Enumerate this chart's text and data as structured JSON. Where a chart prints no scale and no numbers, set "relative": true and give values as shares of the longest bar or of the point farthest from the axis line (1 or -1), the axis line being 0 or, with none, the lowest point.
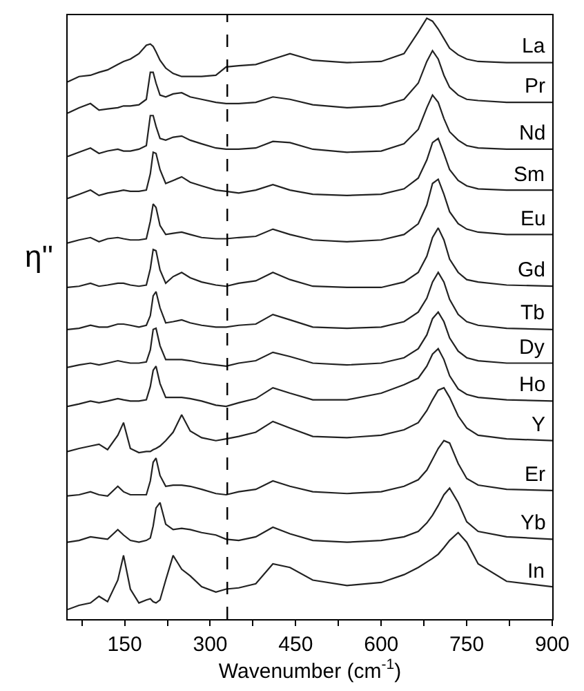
{
  "chart_data": {
    "type": "line",
    "xlabel": "Wavenumber (cm$^{-1}$)",
    "ylabel": "η''",
    "relative": true,
    "xlim": [
      50,
      900
    ],
    "xticks": [
      {
        "value": 75,
        "label": null
      },
      150,
      {
        "value": 225,
        "label": null
      },
      300,
      {
        "value": 375,
        "label": null
      },
      450,
      {
        "value": 525,
        "label": null
      },
      600,
      {
        "value": 675,
        "label": null
      },
      750,
      {
        "value": 825,
        "label": null
      },
      900
    ],
    "ref_lines": [
      {
        "axis": "x",
        "value": 330,
        "color": "#000000",
        "line_style": "dashed"
      }
    ],
    "x": [
      50,
      70,
      90,
      105,
      120,
      138,
      148,
      160,
      175,
      188,
      195,
      200,
      205,
      212,
      222,
      235,
      250,
      265,
      285,
      310,
      328,
      350,
      380,
      410,
      440,
      480,
      540,
      600,
      640,
      665,
      680,
      690,
      700,
      710,
      720,
      735,
      750,
      770,
      820,
      900
    ],
    "series": [
      {
        "name": "La",
        "color": "#222222",
        "values": [
          0.894,
          0.903,
          0.905,
          0.91,
          0.914,
          0.923,
          0.928,
          0.932,
          0.941,
          0.955,
          0.957,
          0.953,
          0.944,
          0.93,
          0.917,
          0.908,
          0.903,
          0.903,
          0.903,
          0.905,
          0.919,
          0.921,
          0.923,
          0.932,
          0.941,
          0.93,
          0.926,
          0.928,
          0.941,
          0.977,
          1.0,
          0.995,
          0.982,
          0.966,
          0.95,
          0.939,
          0.932,
          0.928,
          0.926,
          0.926
        ]
      },
      {
        "name": "Pr",
        "color": "#222222",
        "values": [
          0.842,
          0.851,
          0.858,
          0.847,
          0.849,
          0.851,
          0.854,
          0.854,
          0.856,
          0.865,
          0.91,
          0.91,
          0.892,
          0.872,
          0.869,
          0.874,
          0.876,
          0.869,
          0.865,
          0.86,
          0.858,
          0.858,
          0.86,
          0.869,
          0.865,
          0.856,
          0.851,
          0.854,
          0.865,
          0.892,
          0.928,
          0.946,
          0.932,
          0.905,
          0.885,
          0.872,
          0.865,
          0.863,
          0.86,
          0.86
        ]
      },
      {
        "name": "Nd",
        "color": "#222222",
        "values": [
          0.77,
          0.777,
          0.784,
          0.775,
          0.779,
          0.782,
          0.779,
          0.779,
          0.782,
          0.788,
          0.838,
          0.838,
          0.82,
          0.8,
          0.797,
          0.802,
          0.804,
          0.797,
          0.791,
          0.784,
          0.782,
          0.782,
          0.784,
          0.795,
          0.793,
          0.782,
          0.777,
          0.779,
          0.791,
          0.815,
          0.851,
          0.872,
          0.86,
          0.833,
          0.811,
          0.797,
          0.788,
          0.784,
          0.782,
          0.782
        ]
      },
      {
        "name": "Sm",
        "color": "#222222",
        "values": [
          0.7,
          0.707,
          0.714,
          0.705,
          0.709,
          0.712,
          0.714,
          0.712,
          0.712,
          0.714,
          0.741,
          0.777,
          0.775,
          0.748,
          0.725,
          0.73,
          0.736,
          0.727,
          0.721,
          0.714,
          0.712,
          0.709,
          0.714,
          0.723,
          0.714,
          0.707,
          0.705,
          0.707,
          0.716,
          0.734,
          0.764,
          0.793,
          0.8,
          0.775,
          0.748,
          0.73,
          0.721,
          0.716,
          0.714,
          0.714
        ]
      },
      {
        "name": "Eu",
        "color": "#222222",
        "values": [
          0.626,
          0.631,
          0.635,
          0.628,
          0.633,
          0.635,
          0.633,
          0.631,
          0.631,
          0.633,
          0.662,
          0.691,
          0.685,
          0.655,
          0.64,
          0.642,
          0.644,
          0.64,
          0.635,
          0.633,
          0.633,
          0.635,
          0.637,
          0.649,
          0.64,
          0.631,
          0.628,
          0.631,
          0.64,
          0.658,
          0.689,
          0.725,
          0.732,
          0.707,
          0.678,
          0.658,
          0.649,
          0.644,
          0.64,
          0.64
        ]
      },
      {
        "name": "Gd",
        "color": "#222222",
        "values": [
          0.552,
          0.554,
          0.559,
          0.554,
          0.556,
          0.559,
          0.559,
          0.556,
          0.554,
          0.556,
          0.583,
          0.615,
          0.613,
          0.581,
          0.559,
          0.57,
          0.577,
          0.568,
          0.561,
          0.556,
          0.554,
          0.559,
          0.563,
          0.577,
          0.565,
          0.554,
          0.552,
          0.552,
          0.561,
          0.577,
          0.604,
          0.635,
          0.651,
          0.631,
          0.599,
          0.577,
          0.565,
          0.561,
          0.556,
          0.554
        ]
      },
      {
        "name": "Tb",
        "color": "#222222",
        "values": [
          0.482,
          0.484,
          0.489,
          0.486,
          0.486,
          0.491,
          0.491,
          0.489,
          0.486,
          0.489,
          0.505,
          0.538,
          0.545,
          0.518,
          0.493,
          0.495,
          0.498,
          0.493,
          0.489,
          0.486,
          0.486,
          0.489,
          0.491,
          0.507,
          0.498,
          0.486,
          0.484,
          0.486,
          0.495,
          0.511,
          0.534,
          0.561,
          0.577,
          0.561,
          0.532,
          0.507,
          0.495,
          0.489,
          0.484,
          0.482
        ]
      },
      {
        "name": "Dy",
        "color": "#222222",
        "values": [
          0.419,
          0.423,
          0.426,
          0.423,
          0.426,
          0.43,
          0.428,
          0.426,
          0.426,
          0.428,
          0.448,
          0.482,
          0.484,
          0.455,
          0.432,
          0.432,
          0.432,
          0.43,
          0.426,
          0.423,
          0.421,
          0.426,
          0.43,
          0.444,
          0.437,
          0.426,
          0.423,
          0.426,
          0.435,
          0.45,
          0.473,
          0.5,
          0.511,
          0.495,
          0.468,
          0.446,
          0.435,
          0.43,
          0.426,
          0.426
        ]
      },
      {
        "name": "Ho",
        "color": "#222222",
        "values": [
          0.354,
          0.358,
          0.363,
          0.36,
          0.363,
          0.367,
          0.365,
          0.363,
          0.363,
          0.365,
          0.387,
          0.414,
          0.421,
          0.392,
          0.369,
          0.369,
          0.369,
          0.367,
          0.363,
          0.356,
          0.354,
          0.36,
          0.367,
          0.385,
          0.376,
          0.365,
          0.365,
          0.376,
          0.39,
          0.401,
          0.421,
          0.441,
          0.45,
          0.432,
          0.405,
          0.383,
          0.374,
          0.369,
          0.365,
          0.363
        ]
      },
      {
        "name": "Y",
        "color": "#222222",
        "values": [
          0.279,
          0.284,
          0.288,
          0.291,
          0.282,
          0.306,
          0.327,
          0.284,
          0.277,
          0.279,
          0.279,
          0.282,
          0.284,
          0.288,
          0.297,
          0.311,
          0.34,
          0.313,
          0.302,
          0.297,
          0.3,
          0.304,
          0.311,
          0.329,
          0.318,
          0.304,
          0.302,
          0.306,
          0.315,
          0.327,
          0.347,
          0.365,
          0.381,
          0.385,
          0.369,
          0.338,
          0.318,
          0.306,
          0.3,
          0.297
        ]
      },
      {
        "name": "Er",
        "color": "#222222",
        "values": [
          0.205,
          0.207,
          0.212,
          0.207,
          0.205,
          0.221,
          0.212,
          0.207,
          0.207,
          0.207,
          0.23,
          0.261,
          0.268,
          0.239,
          0.221,
          0.223,
          0.223,
          0.221,
          0.216,
          0.209,
          0.207,
          0.212,
          0.216,
          0.23,
          0.221,
          0.212,
          0.209,
          0.212,
          0.221,
          0.232,
          0.248,
          0.266,
          0.284,
          0.297,
          0.293,
          0.259,
          0.234,
          0.223,
          0.216,
          0.214
        ]
      },
      {
        "name": "Yb",
        "color": "#222222",
        "values": [
          0.128,
          0.131,
          0.137,
          0.135,
          0.133,
          0.149,
          0.14,
          0.131,
          0.128,
          0.131,
          0.135,
          0.155,
          0.185,
          0.194,
          0.158,
          0.149,
          0.151,
          0.149,
          0.144,
          0.14,
          0.133,
          0.131,
          0.137,
          0.153,
          0.142,
          0.131,
          0.128,
          0.131,
          0.137,
          0.146,
          0.16,
          0.173,
          0.189,
          0.207,
          0.218,
          0.194,
          0.162,
          0.146,
          0.137,
          0.133
        ]
      },
      {
        "name": "In",
        "color": "#222222",
        "values": [
          0.016,
          0.023,
          0.027,
          0.038,
          0.029,
          0.065,
          0.106,
          0.05,
          0.027,
          0.032,
          0.034,
          0.029,
          0.027,
          0.032,
          0.065,
          0.106,
          0.083,
          0.072,
          0.054,
          0.045,
          0.05,
          0.052,
          0.059,
          0.092,
          0.086,
          0.065,
          0.056,
          0.061,
          0.074,
          0.086,
          0.095,
          0.101,
          0.108,
          0.119,
          0.131,
          0.144,
          0.128,
          0.092,
          0.063,
          0.054
        ]
      }
    ]
  }
}
